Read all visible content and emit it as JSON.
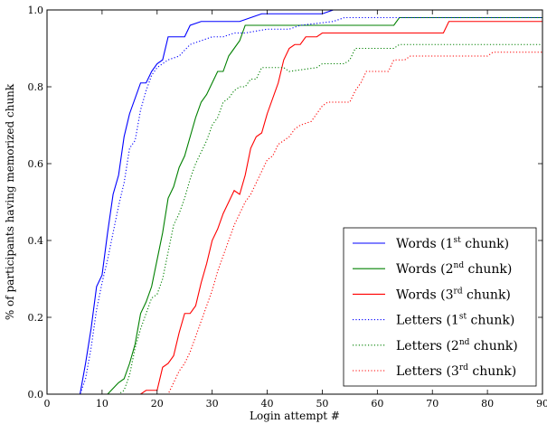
{
  "chart_data": {
    "type": "line",
    "xlabel": "Login attempt #",
    "ylabel": "% of participants having memorized chunk",
    "xlim": [
      0,
      90
    ],
    "ylim": [
      0,
      1.0
    ],
    "x_ticks": [
      0,
      10,
      20,
      30,
      40,
      50,
      60,
      70,
      80,
      90
    ],
    "y_ticks": [
      0.0,
      0.2,
      0.4,
      0.6,
      0.8,
      1.0
    ],
    "x_tick_labels": [
      "0",
      "10",
      "20",
      "30",
      "40",
      "50",
      "60",
      "70",
      "80",
      "90"
    ],
    "y_tick_labels": [
      "0.0",
      "0.2",
      "0.4",
      "0.6",
      "0.8",
      "1.0"
    ],
    "grid": false,
    "legend_placement": "lower-right",
    "series": [
      {
        "name": "Words (1st chunk)",
        "label_base": "Words (1",
        "label_sup": "st",
        "label_tail": " chunk)",
        "color": "#0000ff",
        "style": "solid",
        "points": [
          [
            0,
            0
          ],
          [
            6,
            0
          ],
          [
            7,
            0.08
          ],
          [
            8,
            0.17
          ],
          [
            9,
            0.28
          ],
          [
            10,
            0.31
          ],
          [
            11,
            0.42
          ],
          [
            12,
            0.52
          ],
          [
            13,
            0.57
          ],
          [
            14,
            0.67
          ],
          [
            15,
            0.73
          ],
          [
            16,
            0.77
          ],
          [
            17,
            0.81
          ],
          [
            18,
            0.81
          ],
          [
            19,
            0.84
          ],
          [
            20,
            0.86
          ],
          [
            21,
            0.87
          ],
          [
            22,
            0.93
          ],
          [
            25,
            0.93
          ],
          [
            26,
            0.96
          ],
          [
            28,
            0.97
          ],
          [
            35,
            0.97
          ],
          [
            37,
            0.98
          ],
          [
            39,
            0.99
          ],
          [
            50,
            0.99
          ],
          [
            52,
            1.0
          ],
          [
            90,
            1.0
          ]
        ]
      },
      {
        "name": "Words (2nd chunk)",
        "label_base": "Words (2",
        "label_sup": "nd",
        "label_tail": " chunk)",
        "color": "#008000",
        "style": "solid",
        "points": [
          [
            0,
            0
          ],
          [
            11,
            0
          ],
          [
            13,
            0.03
          ],
          [
            14,
            0.04
          ],
          [
            15,
            0.08
          ],
          [
            16,
            0.13
          ],
          [
            17,
            0.21
          ],
          [
            18,
            0.24
          ],
          [
            19,
            0.28
          ],
          [
            20,
            0.35
          ],
          [
            21,
            0.42
          ],
          [
            22,
            0.51
          ],
          [
            23,
            0.54
          ],
          [
            24,
            0.59
          ],
          [
            25,
            0.62
          ],
          [
            26,
            0.67
          ],
          [
            27,
            0.72
          ],
          [
            28,
            0.76
          ],
          [
            29,
            0.78
          ],
          [
            30,
            0.81
          ],
          [
            31,
            0.84
          ],
          [
            32,
            0.84
          ],
          [
            33,
            0.88
          ],
          [
            34,
            0.9
          ],
          [
            35,
            0.92
          ],
          [
            36,
            0.96
          ],
          [
            63,
            0.96
          ],
          [
            64,
            0.98
          ],
          [
            90,
            0.98
          ]
        ]
      },
      {
        "name": "Words (3rd chunk)",
        "label_base": "Words (3",
        "label_sup": "rd",
        "label_tail": " chunk)",
        "color": "#ff0000",
        "style": "solid",
        "points": [
          [
            0,
            0
          ],
          [
            17,
            0
          ],
          [
            18,
            0.01
          ],
          [
            20,
            0.01
          ],
          [
            21,
            0.07
          ],
          [
            22,
            0.08
          ],
          [
            23,
            0.1
          ],
          [
            24,
            0.16
          ],
          [
            25,
            0.21
          ],
          [
            26,
            0.21
          ],
          [
            27,
            0.23
          ],
          [
            28,
            0.29
          ],
          [
            29,
            0.34
          ],
          [
            30,
            0.4
          ],
          [
            31,
            0.43
          ],
          [
            32,
            0.47
          ],
          [
            33,
            0.5
          ],
          [
            34,
            0.53
          ],
          [
            35,
            0.52
          ],
          [
            36,
            0.57
          ],
          [
            37,
            0.64
          ],
          [
            38,
            0.67
          ],
          [
            39,
            0.68
          ],
          [
            40,
            0.73
          ],
          [
            41,
            0.77
          ],
          [
            42,
            0.81
          ],
          [
            43,
            0.87
          ],
          [
            44,
            0.9
          ],
          [
            45,
            0.91
          ],
          [
            46,
            0.91
          ],
          [
            47,
            0.93
          ],
          [
            49,
            0.93
          ],
          [
            50,
            0.94
          ],
          [
            72,
            0.94
          ],
          [
            73,
            0.97
          ],
          [
            90,
            0.97
          ]
        ]
      },
      {
        "name": "Letters (1st chunk)",
        "label_base": "Letters (1",
        "label_sup": "st",
        "label_tail": " chunk)",
        "color": "#0000ff",
        "style": "dotted",
        "points": [
          [
            0,
            0
          ],
          [
            6,
            0
          ],
          [
            7,
            0.04
          ],
          [
            8,
            0.12
          ],
          [
            9,
            0.22
          ],
          [
            10,
            0.29
          ],
          [
            11,
            0.35
          ],
          [
            12,
            0.42
          ],
          [
            13,
            0.49
          ],
          [
            14,
            0.55
          ],
          [
            15,
            0.64
          ],
          [
            16,
            0.66
          ],
          [
            17,
            0.74
          ],
          [
            18,
            0.79
          ],
          [
            19,
            0.83
          ],
          [
            20,
            0.85
          ],
          [
            22,
            0.87
          ],
          [
            24,
            0.88
          ],
          [
            26,
            0.91
          ],
          [
            30,
            0.93
          ],
          [
            32,
            0.93
          ],
          [
            34,
            0.94
          ],
          [
            36,
            0.94
          ],
          [
            40,
            0.95
          ],
          [
            44,
            0.95
          ],
          [
            46,
            0.96
          ],
          [
            52,
            0.97
          ],
          [
            54,
            0.98
          ],
          [
            90,
            0.98
          ]
        ]
      },
      {
        "name": "Letters (2nd chunk)",
        "label_base": "Letters (2",
        "label_sup": "nd",
        "label_tail": " chunk)",
        "color": "#008000",
        "style": "dotted",
        "points": [
          [
            0,
            0
          ],
          [
            13,
            0
          ],
          [
            14,
            0.01
          ],
          [
            15,
            0.05
          ],
          [
            16,
            0.12
          ],
          [
            17,
            0.17
          ],
          [
            18,
            0.21
          ],
          [
            19,
            0.25
          ],
          [
            20,
            0.26
          ],
          [
            21,
            0.3
          ],
          [
            22,
            0.37
          ],
          [
            23,
            0.44
          ],
          [
            24,
            0.47
          ],
          [
            25,
            0.51
          ],
          [
            26,
            0.56
          ],
          [
            27,
            0.6
          ],
          [
            28,
            0.63
          ],
          [
            29,
            0.66
          ],
          [
            30,
            0.7
          ],
          [
            31,
            0.72
          ],
          [
            32,
            0.76
          ],
          [
            33,
            0.77
          ],
          [
            34,
            0.79
          ],
          [
            35,
            0.8
          ],
          [
            36,
            0.8
          ],
          [
            37,
            0.82
          ],
          [
            38,
            0.82
          ],
          [
            39,
            0.85
          ],
          [
            43,
            0.85
          ],
          [
            44,
            0.84
          ],
          [
            49,
            0.85
          ],
          [
            50,
            0.86
          ],
          [
            54,
            0.86
          ],
          [
            55,
            0.87
          ],
          [
            56,
            0.9
          ],
          [
            63,
            0.9
          ],
          [
            64,
            0.91
          ],
          [
            90,
            0.91
          ]
        ]
      },
      {
        "name": "Letters (3rd chunk)",
        "label_base": "Letters (3",
        "label_sup": "rd",
        "label_tail": " chunk)",
        "color": "#ff0000",
        "style": "dotted",
        "points": [
          [
            0,
            0
          ],
          [
            22,
            0
          ],
          [
            23,
            0.03
          ],
          [
            24,
            0.06
          ],
          [
            25,
            0.08
          ],
          [
            26,
            0.11
          ],
          [
            27,
            0.15
          ],
          [
            28,
            0.19
          ],
          [
            29,
            0.23
          ],
          [
            30,
            0.27
          ],
          [
            31,
            0.32
          ],
          [
            32,
            0.36
          ],
          [
            33,
            0.4
          ],
          [
            34,
            0.44
          ],
          [
            35,
            0.47
          ],
          [
            36,
            0.5
          ],
          [
            37,
            0.52
          ],
          [
            38,
            0.55
          ],
          [
            39,
            0.58
          ],
          [
            40,
            0.61
          ],
          [
            41,
            0.62
          ],
          [
            42,
            0.65
          ],
          [
            43,
            0.66
          ],
          [
            44,
            0.67
          ],
          [
            45,
            0.69
          ],
          [
            46,
            0.7
          ],
          [
            48,
            0.71
          ],
          [
            50,
            0.75
          ],
          [
            51,
            0.76
          ],
          [
            55,
            0.76
          ],
          [
            56,
            0.79
          ],
          [
            57,
            0.81
          ],
          [
            58,
            0.84
          ],
          [
            62,
            0.84
          ],
          [
            63,
            0.87
          ],
          [
            65,
            0.87
          ],
          [
            66,
            0.88
          ],
          [
            80,
            0.88
          ],
          [
            81,
            0.89
          ],
          [
            90,
            0.89
          ]
        ]
      }
    ]
  }
}
